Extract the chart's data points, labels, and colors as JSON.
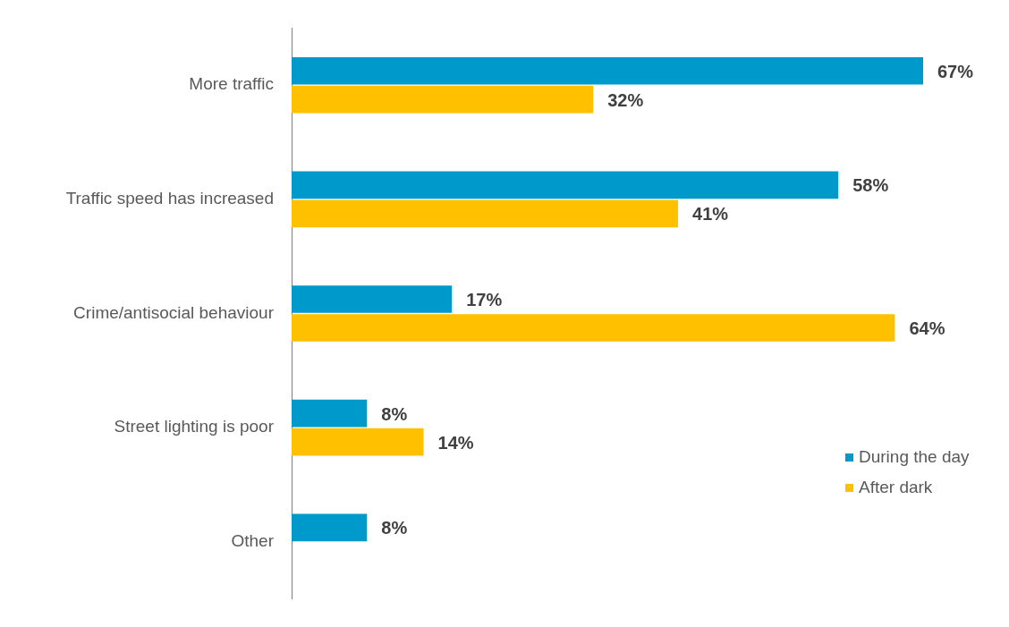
{
  "chart_data": {
    "type": "bar",
    "orientation": "horizontal",
    "categories": [
      "More traffic",
      "Traffic speed has increased",
      "Crime/antisocial behaviour",
      "Street lighting is poor",
      "Other"
    ],
    "series": [
      {
        "name": "During the day",
        "color": "#0099cc",
        "values": [
          67,
          58,
          17,
          8,
          8
        ],
        "value_labels": [
          "67%",
          "58%",
          "17%",
          "8%",
          "8%"
        ]
      },
      {
        "name": "After dark",
        "color": "#ffc000",
        "values": [
          32,
          41,
          64,
          14,
          null
        ],
        "value_labels": [
          "32%",
          "41%",
          "64%",
          "14%",
          null
        ]
      }
    ],
    "legend": "bottom right"
  }
}
